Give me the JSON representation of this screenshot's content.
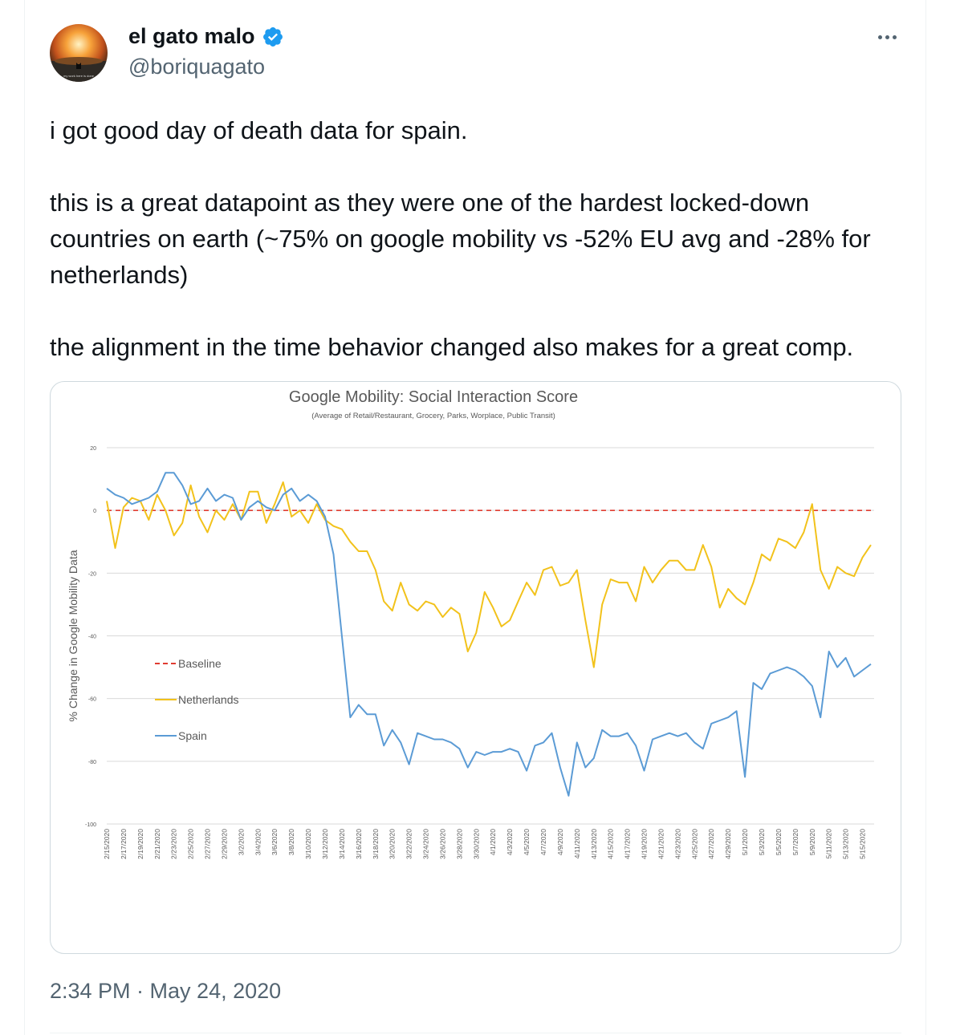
{
  "author": {
    "name": "el gato malo",
    "handle": "@boriquagato",
    "avatar_caption": "my work here is done"
  },
  "tweet": {
    "paragraphs": [
      "i got good day of death data for spain.",
      "this is a great datapoint as they were one of the hardest locked-down countries on earth (~75% on google mobility vs -52% EU avg and -28% for netherlands)",
      "the alignment in the time behavior changed also makes for a great comp."
    ],
    "timestamp": "2:34 PM · May 24, 2020"
  },
  "colors": {
    "verified": "#1d9bf0",
    "netherlands": "#f2c21b",
    "spain": "#5b9bd5",
    "baseline": "#e03c31"
  },
  "chart_data": {
    "type": "line",
    "title": "Google Mobility: Social Interaction Score",
    "subtitle": "(Average of Retail/Restaurant, Grocery, Parks, Worplace, Public Transit)",
    "ylabel": "% Change in Google Mobility Data",
    "ylim": [
      -100,
      20
    ],
    "yticks": [
      "20",
      "0",
      "-20",
      "-40",
      "-60",
      "-80",
      "-100"
    ],
    "ytick_values": [
      20,
      0,
      -20,
      -40,
      -60,
      -80,
      -100
    ],
    "grid": true,
    "legend_position": "left-middle",
    "xticks": [
      "2/15/2020",
      "2/17/2020",
      "2/19/2020",
      "2/21/2020",
      "2/23/2020",
      "2/25/2020",
      "2/27/2020",
      "2/29/2020",
      "3/2/2020",
      "3/4/2020",
      "3/6/2020",
      "3/8/2020",
      "3/10/2020",
      "3/12/2020",
      "3/14/2020",
      "3/16/2020",
      "3/18/2020",
      "3/20/2020",
      "3/22/2020",
      "3/24/2020",
      "3/26/2020",
      "3/28/2020",
      "3/30/2020",
      "4/1/2020",
      "4/3/2020",
      "4/5/2020",
      "4/7/2020",
      "4/9/2020",
      "4/11/2020",
      "4/13/2020",
      "4/15/2020",
      "4/17/2020",
      "4/19/2020",
      "4/21/2020",
      "4/23/2020",
      "4/25/2020",
      "4/27/2020",
      "4/29/2020",
      "5/1/2020",
      "5/3/2020",
      "5/5/2020",
      "5/7/2020",
      "5/9/2020",
      "5/11/2020",
      "5/13/2020",
      "5/15/2020"
    ],
    "x_start": "2/15/2020",
    "x_end": "5/16/2020",
    "series": [
      {
        "name": "Baseline",
        "style": "dashed",
        "values": [
          0,
          0
        ]
      },
      {
        "name": "Netherlands",
        "values": [
          3,
          -12,
          1,
          4,
          3,
          -3,
          5,
          0,
          -8,
          -4,
          8,
          -2,
          -7,
          0,
          -3,
          2,
          -3,
          6,
          6,
          -4,
          2,
          9,
          -2,
          0,
          -4,
          2,
          -3,
          -5,
          -6,
          -10,
          -13,
          -13,
          -19,
          -29,
          -32,
          -23,
          -30,
          -32,
          -29,
          -30,
          -34,
          -31,
          -33,
          -45,
          -39,
          -26,
          -31,
          -37,
          -35,
          -29,
          -23,
          -27,
          -19,
          -18,
          -24,
          -23,
          -19,
          -35,
          -50,
          -30,
          -22,
          -23,
          -23,
          -29,
          -18,
          -23,
          -19,
          -16,
          -16,
          -19,
          -19,
          -11,
          -18,
          -31,
          -25,
          -28,
          -30,
          -23,
          -14,
          -16,
          -9,
          -10,
          -12,
          -7,
          2,
          -19,
          -25,
          -18,
          -20,
          -21,
          -15,
          -11
        ]
      },
      {
        "name": "Spain",
        "values": [
          7,
          5,
          4,
          2,
          3,
          4,
          6,
          12,
          12,
          8,
          2,
          3,
          7,
          3,
          5,
          4,
          -3,
          1,
          3,
          1,
          0,
          5,
          7,
          3,
          5,
          3,
          -2,
          -14,
          -40,
          -66,
          -62,
          -65,
          -65,
          -75,
          -70,
          -74,
          -81,
          -71,
          -72,
          -73,
          -73,
          -74,
          -76,
          -82,
          -77,
          -78,
          -77,
          -77,
          -76,
          -77,
          -83,
          -75,
          -74,
          -71,
          -82,
          -91,
          -74,
          -82,
          -79,
          -70,
          -72,
          -72,
          -71,
          -75,
          -83,
          -73,
          -72,
          -71,
          -72,
          -71,
          -74,
          -76,
          -68,
          -67,
          -66,
          -64,
          -85,
          -55,
          -57,
          -52,
          -51,
          -50,
          -51,
          -53,
          -56,
          -66,
          -45,
          -50,
          -47,
          -53,
          -51,
          -49
        ]
      }
    ]
  }
}
